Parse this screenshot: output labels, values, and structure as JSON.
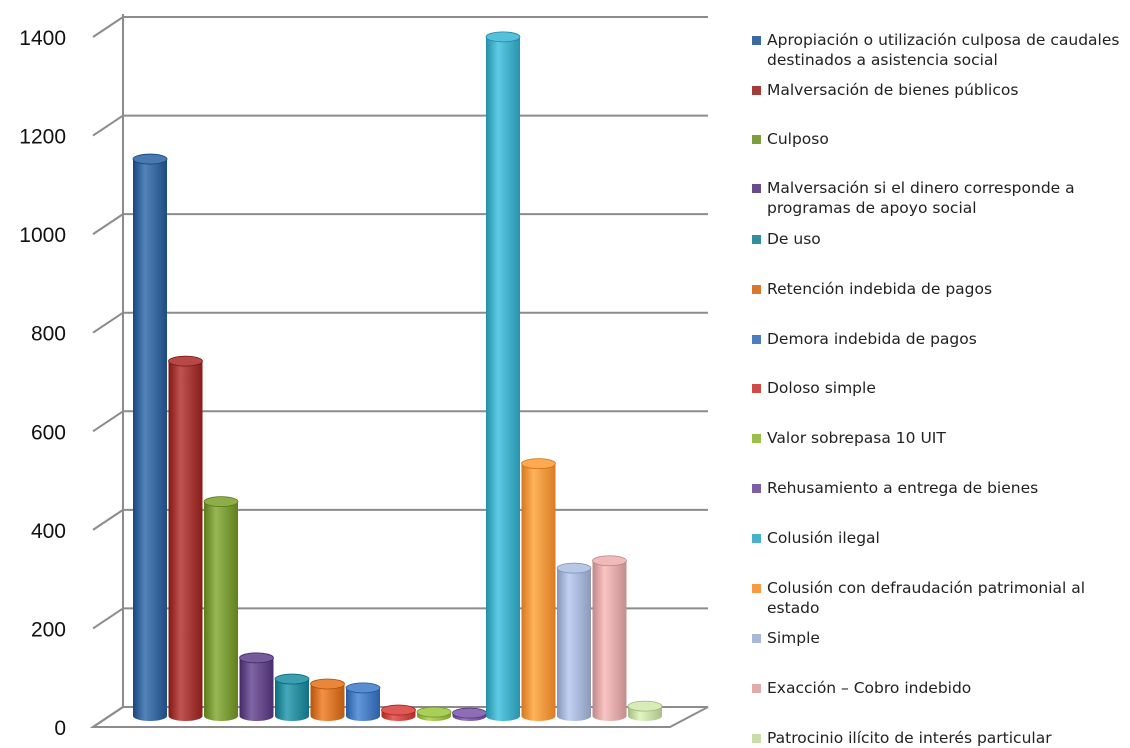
{
  "chart_data": {
    "type": "bar",
    "title": "",
    "xlabel": "",
    "ylabel": "",
    "ylim": [
      0,
      1400
    ],
    "yticks": [
      0,
      200,
      400,
      600,
      800,
      1000,
      1200,
      1400
    ],
    "grid": true,
    "legend_position": "right",
    "series": [
      {
        "name": "Apropiación o utilización culposa de caudales destinados a asistencia social",
        "value": 1130,
        "color": "#3B6AA0"
      },
      {
        "name": "Malversación de bienes públicos",
        "value": 720,
        "color": "#A63A38"
      },
      {
        "name": "Culposo",
        "value": 435,
        "color": "#7E9E3C"
      },
      {
        "name": "Malversación si el dinero corresponde a programas de apoyo social",
        "value": 118,
        "color": "#674C8C"
      },
      {
        "name": "De uso",
        "value": 75,
        "color": "#2E8FA1"
      },
      {
        "name": "Retención indebida de pagos",
        "value": 65,
        "color": "#D9772D"
      },
      {
        "name": "Demora indebida de pagos",
        "value": 57,
        "color": "#4A7EC2"
      },
      {
        "name": "Doloso simple",
        "value": 12,
        "color": "#CF4B48"
      },
      {
        "name": "Valor sobrepasa 10 UIT",
        "value": 8,
        "color": "#9BC049"
      },
      {
        "name": "Rehusamiento a entrega de bienes",
        "value": 6,
        "color": "#7E5FA6"
      },
      {
        "name": "Colusión ilegal",
        "value": 1378,
        "color": "#45B1CB"
      },
      {
        "name": "Colusión con defraudación patrimonial al estado",
        "value": 512,
        "color": "#F79A42"
      },
      {
        "name": "Simple",
        "value": 300,
        "color": "#A9B7D9"
      },
      {
        "name": "Exacción – Cobro indebido",
        "value": 315,
        "color": "#E1ABAB"
      },
      {
        "name": "Patrocinio ilícito de interés particular",
        "value": 20,
        "color": "#C8DDA8"
      }
    ]
  }
}
